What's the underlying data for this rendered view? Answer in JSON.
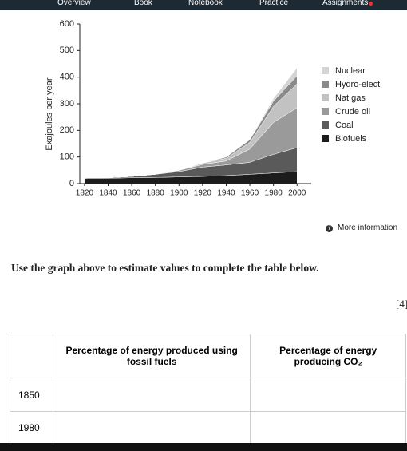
{
  "nav": {
    "tabs": [
      "Overview",
      "Book",
      "Notebook",
      "Practice",
      "Assignments"
    ]
  },
  "chart_data": {
    "type": "stacked-area",
    "y_label": "Exajoules per year",
    "x": [
      1820,
      1840,
      1860,
      1880,
      1900,
      1920,
      1940,
      1960,
      1980,
      2000
    ],
    "xlim": [
      1816,
      2012
    ],
    "xticks": [
      1820,
      1840,
      1860,
      1880,
      1900,
      1920,
      1940,
      1960,
      1980,
      2000
    ],
    "ylim": [
      0,
      600
    ],
    "yticks": [
      0,
      100,
      200,
      300,
      400,
      500,
      600
    ],
    "grid": false,
    "legend": "right",
    "series": [
      {
        "name": "Nuclear",
        "color": "#d4d4d4",
        "values": [
          0,
          0,
          0,
          0,
          0,
          0,
          0,
          0,
          10,
          30
        ]
      },
      {
        "name": "Hydro-elect",
        "color": "#8a8a8a",
        "values": [
          0,
          0,
          0,
          0,
          0,
          0,
          5,
          10,
          20,
          30
        ]
      },
      {
        "name": "Nat gas",
        "color": "#c2c2c2",
        "values": [
          0,
          0,
          0,
          0,
          0,
          5,
          10,
          25,
          60,
          90
        ]
      },
      {
        "name": "Crude oil",
        "color": "#9a9a9a",
        "values": [
          0,
          0,
          0,
          0,
          5,
          10,
          15,
          50,
          120,
          150
        ]
      },
      {
        "name": "Coal",
        "color": "#5a5a5a",
        "values": [
          0,
          2,
          5,
          12,
          20,
          35,
          40,
          45,
          70,
          90
        ]
      },
      {
        "name": "Biofuels",
        "color": "#1c1c1c",
        "values": [
          20,
          20,
          22,
          23,
          25,
          27,
          30,
          35,
          40,
          45
        ]
      }
    ]
  },
  "more_information": "More information",
  "question": "Use the graph above to estimate values to complete the table below.",
  "marks": "[4]",
  "table": {
    "header": [
      "Percentage of energy produced using fossil fuels",
      "Percentage of energy producing CO₂"
    ],
    "rows": [
      "1850",
      "1980"
    ]
  }
}
